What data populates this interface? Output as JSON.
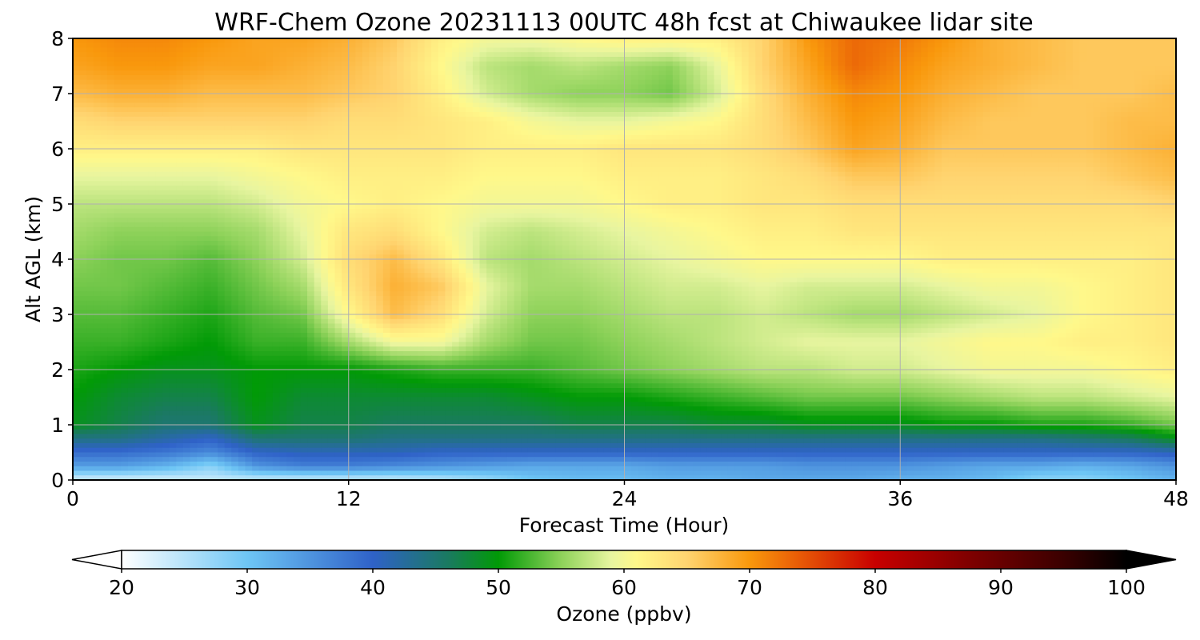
{
  "chart_data": {
    "type": "heatmap",
    "title": "WRF-Chem Ozone  20231113 00UTC 48h fcst at Chiwaukee lidar site",
    "xlabel": "Forecast Time (Hour)",
    "ylabel": "Alt AGL (km)",
    "xlim": [
      0,
      48
    ],
    "ylim": [
      0,
      8
    ],
    "x_ticks": [
      "0",
      "12",
      "24",
      "36",
      "48"
    ],
    "y_ticks": [
      "0",
      "1",
      "2",
      "3",
      "4",
      "5",
      "6",
      "7",
      "8"
    ],
    "grid": true,
    "colorbar": {
      "label": "Ozone  (ppbv)",
      "range": [
        20,
        100
      ],
      "ticks": [
        "20",
        "30",
        "40",
        "50",
        "60",
        "70",
        "80",
        "90",
        "100"
      ],
      "extend": "both",
      "colors": [
        {
          "v": 20,
          "c": "#ffffff"
        },
        {
          "v": 30,
          "c": "#6ec6f5"
        },
        {
          "v": 40,
          "c": "#2f62c8"
        },
        {
          "v": 46,
          "c": "#1a7a60"
        },
        {
          "v": 50,
          "c": "#019a06"
        },
        {
          "v": 55,
          "c": "#8ed25a"
        },
        {
          "v": 59,
          "c": "#e8f5a0"
        },
        {
          "v": 61,
          "c": "#fff88a"
        },
        {
          "v": 65,
          "c": "#ffd470"
        },
        {
          "v": 70,
          "c": "#f9980c"
        },
        {
          "v": 74,
          "c": "#e85a06"
        },
        {
          "v": 80,
          "c": "#c80000"
        },
        {
          "v": 88,
          "c": "#7a0000"
        },
        {
          "v": 95,
          "c": "#3a0000"
        },
        {
          "v": 100,
          "c": "#000000"
        }
      ]
    },
    "hours": [
      0,
      2,
      4,
      6,
      8,
      10,
      12,
      14,
      16,
      18,
      20,
      22,
      24,
      26,
      28,
      30,
      32,
      34,
      36,
      38,
      40,
      42,
      44,
      46,
      48
    ],
    "altitudes_km": [
      0,
      0.25,
      0.5,
      0.75,
      1,
      1.5,
      2,
      2.5,
      3,
      3.5,
      4,
      4.5,
      5,
      5.5,
      6,
      6.5,
      7,
      7.5,
      8
    ],
    "ozone_ppbv": [
      [
        23,
        23,
        23,
        24,
        24,
        24,
        24,
        24,
        25,
        27,
        30,
        31,
        31,
        32,
        32,
        33,
        33,
        33,
        32,
        32,
        31,
        28,
        28,
        30,
        32
      ],
      [
        34,
        34,
        32,
        28,
        35,
        37,
        37,
        36,
        35,
        34,
        33,
        33,
        33,
        34,
        34,
        34,
        35,
        35,
        35,
        34,
        33,
        33,
        32,
        33,
        35
      ],
      [
        39,
        39,
        38,
        36,
        40,
        41,
        41,
        41,
        40,
        40,
        40,
        40,
        40,
        40,
        40,
        40,
        40,
        40,
        40,
        40,
        40,
        40,
        40,
        40,
        41
      ],
      [
        44,
        44,
        42,
        40,
        45,
        45,
        45,
        44,
        44,
        44,
        44,
        44,
        44,
        44,
        44,
        44,
        44,
        44,
        44,
        44,
        44,
        44,
        45,
        46,
        49
      ],
      [
        49,
        47,
        45,
        45,
        49,
        47,
        47,
        46,
        46,
        46,
        46,
        47,
        47,
        47,
        48,
        48,
        49,
        49,
        49,
        50,
        50,
        51,
        51,
        52,
        54
      ],
      [
        50,
        48,
        47,
        47,
        50,
        48,
        48,
        48,
        48,
        48,
        49,
        50,
        50,
        51,
        52,
        53,
        54,
        54,
        54,
        55,
        56,
        57,
        57,
        58,
        59
      ],
      [
        51,
        50,
        49,
        49,
        50,
        50,
        50,
        51,
        52,
        52,
        52,
        53,
        54,
        55,
        56,
        57,
        57,
        58,
        58,
        59,
        60,
        60,
        60,
        61,
        62
      ],
      [
        52,
        52,
        51,
        50,
        52,
        52,
        56,
        60,
        60,
        56,
        54,
        54,
        55,
        56,
        57,
        58,
        59,
        59,
        59,
        60,
        61,
        61,
        62,
        62,
        63
      ],
      [
        53,
        53,
        52,
        51,
        53,
        54,
        61,
        67,
        64,
        58,
        55,
        55,
        56,
        57,
        57,
        58,
        57,
        56,
        56,
        57,
        58,
        59,
        61,
        62,
        63
      ],
      [
        54,
        54,
        53,
        52,
        54,
        56,
        63,
        68,
        66,
        59,
        56,
        56,
        57,
        58,
        58,
        59,
        58,
        58,
        58,
        59,
        60,
        60,
        61,
        62,
        63
      ],
      [
        55,
        54,
        54,
        53,
        55,
        58,
        64,
        67,
        63,
        57,
        56,
        57,
        58,
        59,
        60,
        61,
        61,
        61,
        61,
        62,
        62,
        62,
        62,
        62,
        63
      ],
      [
        56,
        55,
        55,
        55,
        56,
        59,
        63,
        64,
        61,
        58,
        57,
        58,
        59,
        60,
        61,
        62,
        62,
        63,
        63,
        63,
        63,
        63,
        63,
        63,
        63
      ],
      [
        57,
        57,
        57,
        57,
        58,
        60,
        61,
        62,
        61,
        60,
        60,
        60,
        61,
        62,
        62,
        63,
        63,
        64,
        64,
        64,
        64,
        64,
        64,
        64,
        65
      ],
      [
        59,
        59,
        59,
        59,
        60,
        61,
        62,
        62,
        62,
        61,
        61,
        61,
        62,
        62,
        62,
        63,
        64,
        66,
        66,
        65,
        65,
        65,
        65,
        66,
        67
      ],
      [
        62,
        62,
        62,
        62,
        62,
        63,
        63,
        63,
        63,
        62,
        62,
        62,
        63,
        63,
        63,
        64,
        66,
        69,
        68,
        66,
        66,
        66,
        66,
        67,
        68
      ],
      [
        64,
        65,
        65,
        65,
        65,
        65,
        64,
        64,
        63,
        62,
        60,
        59,
        59,
        60,
        61,
        64,
        67,
        70,
        69,
        67,
        66,
        66,
        66,
        67,
        67
      ],
      [
        67,
        68,
        68,
        67,
        67,
        67,
        66,
        65,
        62,
        58,
        56,
        55,
        55,
        54,
        58,
        64,
        68,
        71,
        70,
        68,
        67,
        66,
        66,
        66,
        67
      ],
      [
        69,
        70,
        70,
        69,
        69,
        68,
        67,
        65,
        61,
        57,
        56,
        57,
        56,
        55,
        59,
        65,
        69,
        73,
        71,
        69,
        68,
        67,
        66,
        66,
        66
      ],
      [
        70,
        71,
        71,
        70,
        69,
        69,
        68,
        66,
        62,
        60,
        60,
        61,
        62,
        62,
        62,
        65,
        70,
        73,
        72,
        70,
        68,
        67,
        66,
        66,
        66
      ]
    ]
  }
}
